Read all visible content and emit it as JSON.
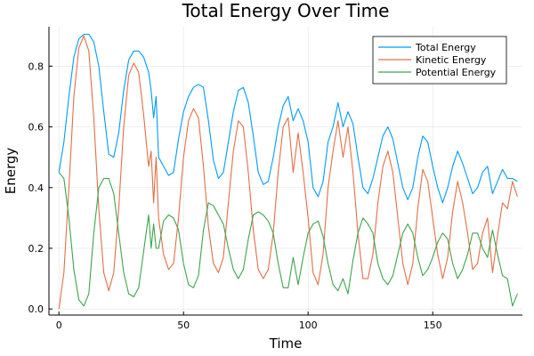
{
  "chart_data": {
    "type": "line",
    "title": "Total Energy Over Time",
    "xlabel": "Time",
    "ylabel": "Energy",
    "xlim": [
      -4,
      186
    ],
    "ylim": [
      -0.02,
      0.93
    ],
    "xticks": [
      0,
      50,
      100,
      150
    ],
    "xtick_labels": [
      "0",
      "50",
      "100",
      "150"
    ],
    "yticks": [
      0.0,
      0.2,
      0.4,
      0.6,
      0.8
    ],
    "ytick_labels": [
      "0.0",
      "0.2",
      "0.4",
      "0.6",
      "0.8"
    ],
    "grid": true,
    "legend_position": "top-right",
    "series": [
      {
        "name": "Total Energy",
        "color": "#009AFA",
        "x": [
          0,
          2,
          4,
          6,
          8,
          10,
          12,
          14,
          16,
          18,
          20,
          22,
          24,
          26,
          28,
          30,
          32,
          34,
          36,
          37,
          38,
          39,
          40,
          42,
          44,
          46,
          48,
          50,
          52,
          54,
          56,
          58,
          60,
          62,
          64,
          66,
          68,
          70,
          72,
          74,
          76,
          78,
          80,
          82,
          84,
          86,
          88,
          90,
          92,
          94,
          96,
          98,
          100,
          102,
          104,
          106,
          108,
          110,
          112,
          114,
          116,
          118,
          120,
          122,
          124,
          126,
          128,
          130,
          132,
          134,
          136,
          138,
          140,
          142,
          144,
          146,
          148,
          150,
          152,
          154,
          156,
          158,
          160,
          162,
          164,
          166,
          168,
          170,
          172,
          174,
          176,
          178,
          180,
          182,
          184
        ],
        "values": [
          0.45,
          0.55,
          0.7,
          0.83,
          0.89,
          0.905,
          0.905,
          0.88,
          0.8,
          0.65,
          0.51,
          0.5,
          0.58,
          0.72,
          0.82,
          0.85,
          0.85,
          0.83,
          0.78,
          0.72,
          0.63,
          0.7,
          0.5,
          0.47,
          0.44,
          0.45,
          0.56,
          0.65,
          0.7,
          0.73,
          0.74,
          0.73,
          0.62,
          0.49,
          0.43,
          0.45,
          0.55,
          0.65,
          0.72,
          0.73,
          0.68,
          0.57,
          0.45,
          0.41,
          0.42,
          0.5,
          0.6,
          0.67,
          0.7,
          0.62,
          0.66,
          0.62,
          0.55,
          0.4,
          0.37,
          0.42,
          0.55,
          0.6,
          0.68,
          0.6,
          0.65,
          0.61,
          0.5,
          0.4,
          0.38,
          0.43,
          0.5,
          0.57,
          0.6,
          0.56,
          0.48,
          0.4,
          0.36,
          0.4,
          0.5,
          0.57,
          0.55,
          0.47,
          0.4,
          0.35,
          0.4,
          0.47,
          0.52,
          0.48,
          0.43,
          0.38,
          0.4,
          0.45,
          0.47,
          0.38,
          0.42,
          0.46,
          0.43,
          0.43,
          0.42
        ]
      },
      {
        "name": "Kinetic Energy",
        "color": "#E26F46",
        "x": [
          0,
          2,
          4,
          6,
          8,
          10,
          12,
          14,
          16,
          18,
          20,
          22,
          24,
          26,
          28,
          30,
          32,
          34,
          36,
          37,
          38,
          39,
          40,
          42,
          44,
          46,
          48,
          50,
          52,
          54,
          56,
          58,
          60,
          62,
          64,
          66,
          68,
          70,
          72,
          74,
          76,
          78,
          80,
          82,
          84,
          86,
          88,
          90,
          92,
          94,
          96,
          98,
          100,
          102,
          104,
          106,
          108,
          110,
          112,
          114,
          116,
          118,
          120,
          122,
          124,
          126,
          128,
          130,
          132,
          134,
          136,
          138,
          140,
          142,
          144,
          146,
          148,
          150,
          152,
          154,
          156,
          158,
          160,
          162,
          164,
          166,
          168,
          170,
          172,
          174,
          176,
          178,
          180,
          182,
          184
        ],
        "values": [
          0.0,
          0.12,
          0.4,
          0.7,
          0.86,
          0.9,
          0.85,
          0.63,
          0.33,
          0.12,
          0.06,
          0.12,
          0.33,
          0.6,
          0.77,
          0.81,
          0.78,
          0.64,
          0.47,
          0.52,
          0.35,
          0.5,
          0.3,
          0.18,
          0.13,
          0.15,
          0.3,
          0.5,
          0.62,
          0.66,
          0.63,
          0.47,
          0.27,
          0.15,
          0.12,
          0.17,
          0.35,
          0.52,
          0.62,
          0.6,
          0.45,
          0.26,
          0.13,
          0.1,
          0.13,
          0.25,
          0.45,
          0.6,
          0.63,
          0.45,
          0.58,
          0.45,
          0.3,
          0.12,
          0.08,
          0.18,
          0.4,
          0.52,
          0.62,
          0.5,
          0.6,
          0.45,
          0.25,
          0.1,
          0.1,
          0.18,
          0.35,
          0.47,
          0.52,
          0.45,
          0.3,
          0.15,
          0.08,
          0.15,
          0.33,
          0.46,
          0.42,
          0.3,
          0.18,
          0.1,
          0.17,
          0.32,
          0.42,
          0.35,
          0.25,
          0.13,
          0.15,
          0.25,
          0.3,
          0.12,
          0.24,
          0.35,
          0.33,
          0.42,
          0.37
        ]
      },
      {
        "name": "Potential Energy",
        "color": "#3DA44D",
        "x": [
          0,
          2,
          4,
          6,
          8,
          10,
          12,
          14,
          16,
          18,
          20,
          22,
          24,
          26,
          28,
          30,
          32,
          34,
          36,
          37,
          38,
          39,
          40,
          42,
          44,
          46,
          48,
          50,
          52,
          54,
          56,
          58,
          60,
          62,
          64,
          66,
          68,
          70,
          72,
          74,
          76,
          78,
          80,
          82,
          84,
          86,
          88,
          90,
          92,
          94,
          96,
          98,
          100,
          102,
          104,
          106,
          108,
          110,
          112,
          114,
          116,
          118,
          120,
          122,
          124,
          126,
          128,
          130,
          132,
          134,
          136,
          138,
          140,
          142,
          144,
          146,
          148,
          150,
          152,
          154,
          156,
          158,
          160,
          162,
          164,
          166,
          168,
          170,
          172,
          174,
          176,
          178,
          180,
          182,
          184
        ],
        "values": [
          0.45,
          0.43,
          0.3,
          0.13,
          0.03,
          0.01,
          0.05,
          0.25,
          0.4,
          0.43,
          0.43,
          0.38,
          0.25,
          0.12,
          0.05,
          0.04,
          0.07,
          0.19,
          0.31,
          0.2,
          0.28,
          0.2,
          0.2,
          0.29,
          0.31,
          0.3,
          0.26,
          0.15,
          0.08,
          0.07,
          0.11,
          0.26,
          0.35,
          0.34,
          0.31,
          0.28,
          0.2,
          0.13,
          0.1,
          0.13,
          0.23,
          0.31,
          0.32,
          0.31,
          0.29,
          0.25,
          0.15,
          0.07,
          0.07,
          0.17,
          0.08,
          0.17,
          0.25,
          0.28,
          0.29,
          0.24,
          0.15,
          0.08,
          0.06,
          0.1,
          0.05,
          0.16,
          0.25,
          0.3,
          0.28,
          0.25,
          0.15,
          0.1,
          0.08,
          0.11,
          0.18,
          0.25,
          0.28,
          0.25,
          0.17,
          0.11,
          0.13,
          0.17,
          0.22,
          0.25,
          0.23,
          0.15,
          0.1,
          0.13,
          0.18,
          0.25,
          0.25,
          0.2,
          0.17,
          0.26,
          0.18,
          0.11,
          0.1,
          0.01,
          0.05
        ]
      }
    ]
  }
}
